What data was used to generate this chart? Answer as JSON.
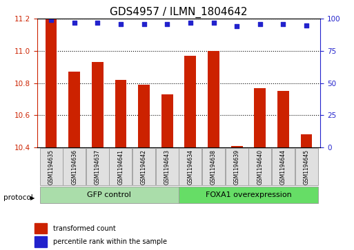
{
  "title": "GDS4957 / ILMN_1804642",
  "samples": [
    "GSM1194635",
    "GSM1194636",
    "GSM1194637",
    "GSM1194641",
    "GSM1194642",
    "GSM1194643",
    "GSM1194634",
    "GSM1194638",
    "GSM1194639",
    "GSM1194640",
    "GSM1194644",
    "GSM1194645"
  ],
  "bar_values": [
    11.2,
    10.87,
    10.93,
    10.82,
    10.79,
    10.73,
    10.97,
    11.0,
    10.41,
    10.77,
    10.75,
    10.48
  ],
  "dot_values": [
    99,
    97,
    97,
    96,
    96,
    96,
    97,
    97,
    94,
    96,
    96,
    95
  ],
  "bar_baseline": 10.4,
  "ylim_left": [
    10.4,
    11.2
  ],
  "ylim_right": [
    0,
    100
  ],
  "yticks_left": [
    10.4,
    10.6,
    10.8,
    11.0,
    11.2
  ],
  "yticks_right": [
    0,
    25,
    50,
    75,
    100
  ],
  "bar_color": "#cc2200",
  "dot_color": "#2222cc",
  "group1_label": "GFP control",
  "group2_label": "FOXA1 overexpression",
  "group1_indices": [
    0,
    1,
    2,
    3,
    4,
    5
  ],
  "group2_indices": [
    6,
    7,
    8,
    9,
    10,
    11
  ],
  "group1_color": "#aaddaa",
  "group2_color": "#66dd66",
  "protocol_label": "protocol",
  "legend_bar_label": "transformed count",
  "legend_dot_label": "percentile rank within the sample",
  "title_fontsize": 11,
  "tick_fontsize": 7.5,
  "label_fontsize": 8,
  "bar_width": 0.5,
  "bg_color": "#ffffff"
}
